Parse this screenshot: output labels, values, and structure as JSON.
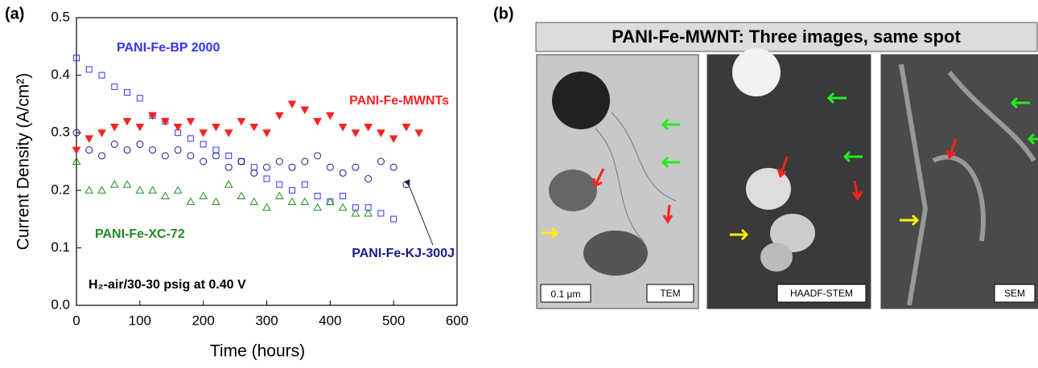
{
  "chart_data": {
    "type": "scatter",
    "label": "(a)",
    "xlabel": "Time (hours)",
    "ylabel": "Current Density (A/cm²)",
    "annotation": "H₂-air/30-30 psig at 0.40 V",
    "xlim": [
      0,
      600
    ],
    "xticks": [
      0,
      100,
      200,
      300,
      400,
      500,
      600
    ],
    "ylim": [
      0,
      0.5
    ],
    "yticks": [
      {
        "value": 0,
        "label": "0.0"
      },
      0.1,
      0.2,
      0.3,
      0.4,
      0.5
    ],
    "grid": false,
    "series": [
      {
        "name": "PANI-Fe-BP 2000",
        "color": "#3333ff",
        "marker": "square",
        "x": [
          0,
          20,
          40,
          60,
          80,
          100,
          120,
          140,
          160,
          180,
          200,
          220,
          240,
          260,
          280,
          300,
          320,
          340,
          360,
          380,
          400,
          420,
          440,
          460,
          480,
          500
        ],
        "values": [
          0.43,
          0.41,
          0.4,
          0.38,
          0.37,
          0.36,
          0.33,
          0.32,
          0.3,
          0.29,
          0.28,
          0.27,
          0.26,
          0.25,
          0.24,
          0.22,
          0.21,
          0.2,
          0.21,
          0.19,
          0.18,
          0.19,
          0.17,
          0.17,
          0.16,
          0.15
        ]
      },
      {
        "name": "PANI-Fe-MWNTs",
        "color": "#ff2020",
        "marker": "triangle-down",
        "x": [
          0,
          20,
          40,
          60,
          80,
          100,
          120,
          140,
          160,
          180,
          200,
          220,
          240,
          260,
          280,
          300,
          320,
          340,
          360,
          380,
          400,
          420,
          440,
          460,
          480,
          500,
          520,
          540
        ],
        "values": [
          0.27,
          0.29,
          0.3,
          0.31,
          0.32,
          0.31,
          0.33,
          0.32,
          0.31,
          0.32,
          0.3,
          0.31,
          0.3,
          0.32,
          0.31,
          0.3,
          0.33,
          0.35,
          0.34,
          0.32,
          0.33,
          0.31,
          0.3,
          0.31,
          0.3,
          0.29,
          0.31,
          0.3
        ]
      },
      {
        "name": "PANI-Fe-KJ-300J",
        "color": "#1a1a8c",
        "marker": "circle",
        "x": [
          0,
          20,
          40,
          60,
          80,
          100,
          120,
          140,
          160,
          180,
          200,
          220,
          240,
          260,
          280,
          300,
          320,
          340,
          360,
          380,
          400,
          420,
          440,
          460,
          480,
          500,
          520
        ],
        "values": [
          0.3,
          0.27,
          0.26,
          0.28,
          0.27,
          0.28,
          0.27,
          0.26,
          0.27,
          0.26,
          0.25,
          0.26,
          0.24,
          0.25,
          0.23,
          0.24,
          0.25,
          0.24,
          0.25,
          0.26,
          0.24,
          0.23,
          0.24,
          0.22,
          0.25,
          0.24,
          0.21
        ]
      },
      {
        "name": "PANI-Fe-XC-72",
        "color": "#228b22",
        "marker": "triangle-up",
        "x": [
          0,
          20,
          40,
          60,
          80,
          100,
          120,
          140,
          160,
          180,
          200,
          220,
          240,
          260,
          280,
          300,
          320,
          340,
          360,
          380,
          400,
          420,
          440,
          460
        ],
        "values": [
          0.25,
          0.2,
          0.2,
          0.21,
          0.21,
          0.2,
          0.2,
          0.19,
          0.2,
          0.18,
          0.19,
          0.18,
          0.21,
          0.19,
          0.18,
          0.17,
          0.19,
          0.18,
          0.18,
          0.17,
          0.18,
          0.17,
          0.16,
          0.16
        ]
      }
    ]
  },
  "panel_b": {
    "label": "(b)",
    "title": "PANI-Fe-MWNT: Three images, same spot",
    "scale_bar": "0.1 μm",
    "images": [
      "TEM",
      "HAADF-STEM",
      "SEM"
    ]
  }
}
